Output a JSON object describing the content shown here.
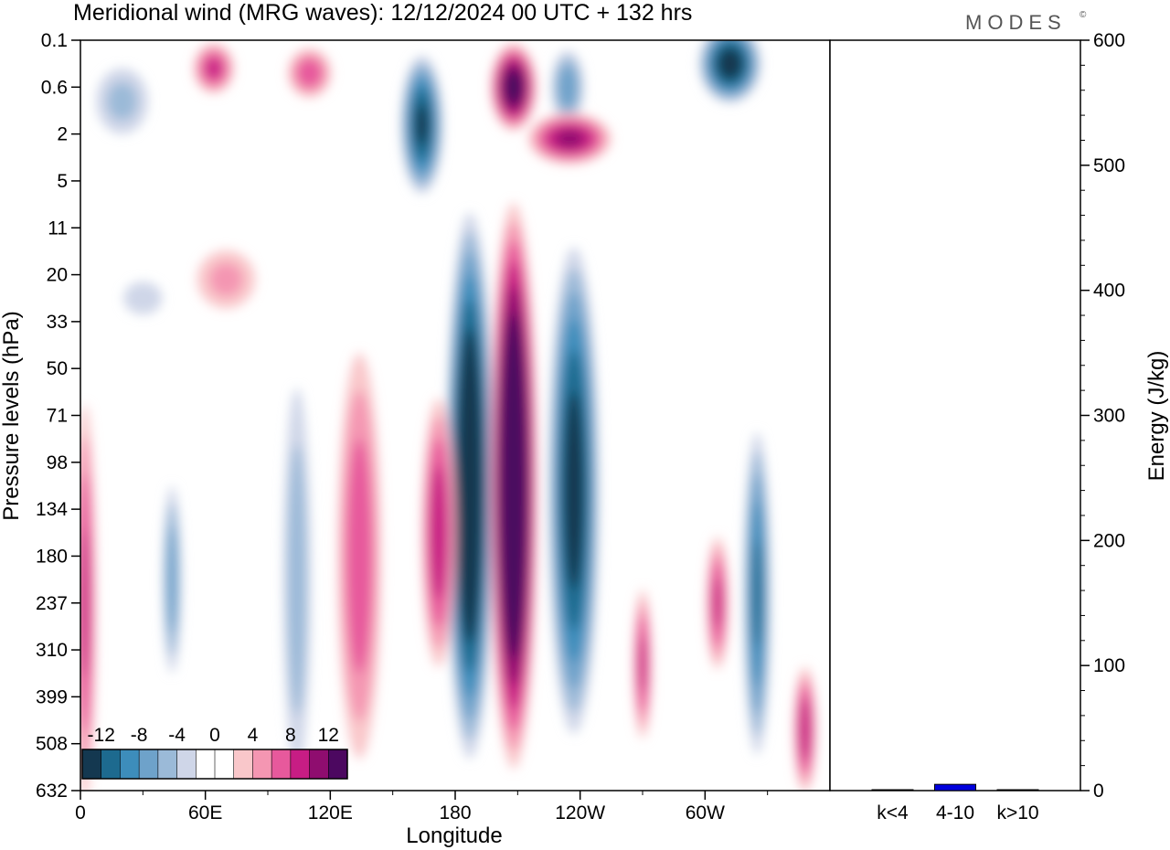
{
  "header": {
    "title": "Meridional wind (MRG waves):  12/12/2024  00 UTC  + 132 hrs",
    "brand": "MODES",
    "brand_mark": "©"
  },
  "chart_data": [
    {
      "type": "heatmap",
      "title": "Meridional wind (MRG waves):  12/12/2024  00 UTC  + 132 hrs",
      "xlabel": "Longitude",
      "ylabel": "Pressure levels (hPa)",
      "x_ticks": [
        "0",
        "60E",
        "120E",
        "180",
        "120W",
        "60W"
      ],
      "y_ticks": [
        "0.1",
        "0.6",
        "2",
        "5",
        "11",
        "20",
        "33",
        "50",
        "71",
        "98",
        "134",
        "180",
        "237",
        "310",
        "399",
        "508",
        "632"
      ],
      "colorbar": {
        "labels": [
          "-12",
          "-8",
          "-4",
          "0",
          "4",
          "8",
          "12"
        ],
        "colors": [
          "#143850",
          "#1d6a8f",
          "#3d8dbb",
          "#6ea2ca",
          "#9bbad8",
          "#cfd6e8",
          "#ffffff",
          "#ffffff",
          "#f9c7ca",
          "#f496b2",
          "#e7599c",
          "#c71d84",
          "#8f0d6f",
          "#4c0860"
        ]
      },
      "features": [
        {
          "sign": "neg",
          "lon": 187,
          "lev": 9.5,
          "a": 12,
          "b": 6.2,
          "peak": 17
        },
        {
          "sign": "pos",
          "lon": 208,
          "lev": 9.5,
          "a": 12,
          "b": 6.4,
          "peak": 18
        },
        {
          "sign": "neg",
          "lon": 237,
          "lev": 9.6,
          "a": 13,
          "b": 5.6,
          "peak": 14
        },
        {
          "sign": "pos",
          "lon": 172,
          "lev": 10.5,
          "a": 9,
          "b": 3.2,
          "peak": 10
        },
        {
          "sign": "pos",
          "lon": 134,
          "lev": 11.0,
          "a": 12,
          "b": 5.0,
          "peak": 8
        },
        {
          "sign": "neg",
          "lon": 104,
          "lev": 11.5,
          "a": 8,
          "b": 5.0,
          "peak": 6
        },
        {
          "sign": "neg",
          "lon": 44,
          "lev": 11.5,
          "a": 5,
          "b": 2.3,
          "peak": 8
        },
        {
          "sign": "pos",
          "lon": 2,
          "lev": 12.0,
          "a": 6,
          "b": 4.8,
          "peak": 9
        },
        {
          "sign": "neg",
          "lon": 325,
          "lev": 11.8,
          "a": 7,
          "b": 3.8,
          "peak": 11
        },
        {
          "sign": "pos",
          "lon": 306,
          "lev": 12.0,
          "a": 6,
          "b": 1.6,
          "peak": 9
        },
        {
          "sign": "pos",
          "lon": 270,
          "lev": 13.3,
          "a": 5,
          "b": 1.8,
          "peak": 9
        },
        {
          "sign": "pos",
          "lon": 348,
          "lev": 14.7,
          "a": 6,
          "b": 1.5,
          "peak": 10
        },
        {
          "sign": "neg",
          "lon": 234,
          "lev": 1.0,
          "a": 9,
          "b": 0.9,
          "peak": 8
        },
        {
          "sign": "pos",
          "lon": 208,
          "lev": 1.0,
          "a": 12,
          "b": 1.0,
          "peak": 14
        },
        {
          "sign": "pos",
          "lon": 235,
          "lev": 2.1,
          "a": 22,
          "b": 0.6,
          "peak": 11
        },
        {
          "sign": "neg",
          "lon": 164,
          "lev": 1.8,
          "a": 11,
          "b": 1.6,
          "peak": 13
        },
        {
          "sign": "neg",
          "lon": 312,
          "lev": 0.5,
          "a": 16,
          "b": 0.9,
          "peak": 14
        },
        {
          "sign": "pos",
          "lon": 64,
          "lev": 0.6,
          "a": 11,
          "b": 0.6,
          "peak": 9
        },
        {
          "sign": "pos",
          "lon": 110,
          "lev": 0.7,
          "a": 12,
          "b": 0.6,
          "peak": 8
        },
        {
          "sign": "neg",
          "lon": 20,
          "lev": 1.3,
          "a": 16,
          "b": 0.9,
          "peak": 5
        },
        {
          "sign": "pos",
          "lon": 70,
          "lev": 5.1,
          "a": 18,
          "b": 0.8,
          "peak": 5
        },
        {
          "sign": "neg",
          "lon": 30,
          "lev": 5.5,
          "a": 16,
          "b": 0.6,
          "peak": 3
        }
      ]
    },
    {
      "type": "bar",
      "ylabel": "Energy (J/kg)",
      "categories": [
        "k<4",
        "4-10",
        "k>10"
      ],
      "values": [
        0.5,
        5,
        0.5
      ],
      "y_ticks": [
        "0",
        "100",
        "200",
        "300",
        "400",
        "500",
        "600"
      ],
      "ylim": [
        0,
        600
      ],
      "bar_color": "#0000dd"
    }
  ]
}
